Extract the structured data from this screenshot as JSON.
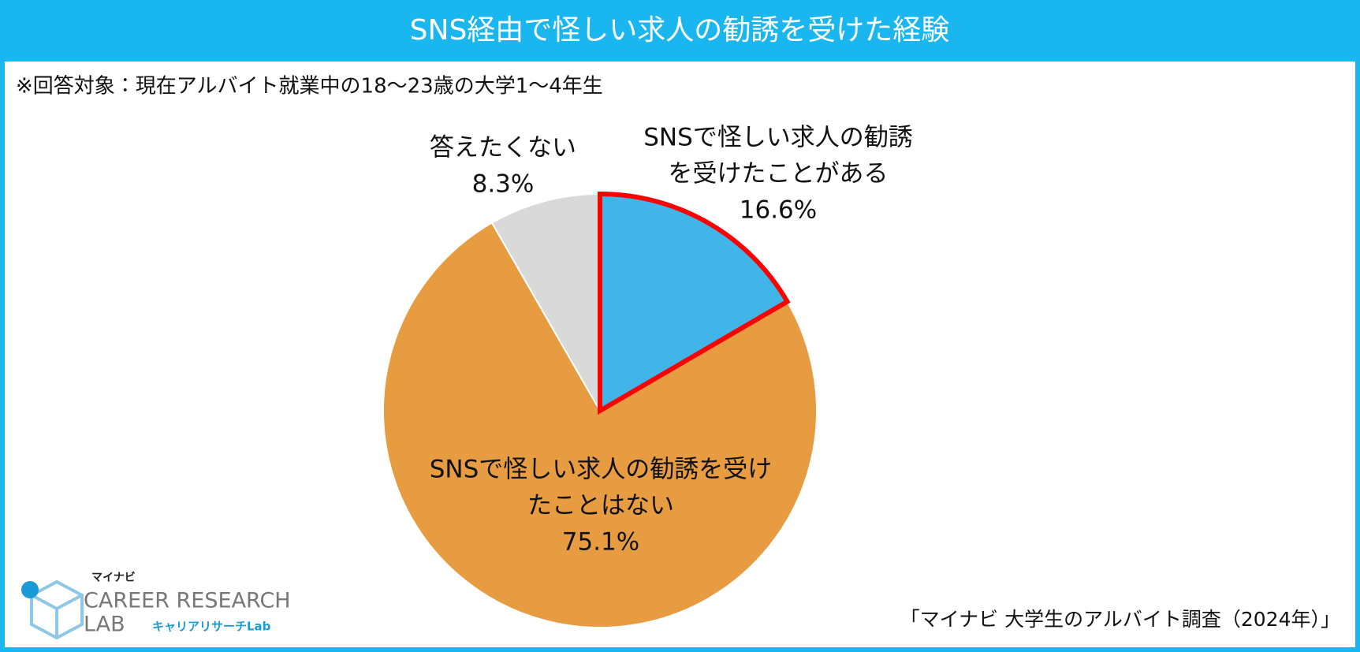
{
  "chart_data": {
    "type": "pie",
    "title": "SNS経由で怪しい求人の勧誘を受けた経験",
    "subtitle": "※回答対象：現在アルバイト就業中の18～23歳の大学1～4年生",
    "source": "「マイナビ 大学生のアルバイト調査（2024年）」",
    "categories": [
      [
        "SNSで怪しい求人の勧誘",
        "を受けたことがある"
      ],
      [
        "SNSで怪しい求人の勧誘を受け",
        "たことはない"
      ],
      [
        "答えたくない"
      ]
    ],
    "values": [
      16.6,
      75.1,
      8.3
    ],
    "value_labels": [
      "16.6%",
      "75.1%",
      "8.3%"
    ],
    "colors": [
      "#41b4e8",
      "#e89c42",
      "#d9d9d9"
    ],
    "highlight": {
      "index": 0,
      "color": "#ff0000"
    }
  },
  "logo": {
    "brand": "マイナビ",
    "line1": "CAREER RESEARCH",
    "line2": "LAB",
    "sub": "キャリアリサーチLab"
  }
}
